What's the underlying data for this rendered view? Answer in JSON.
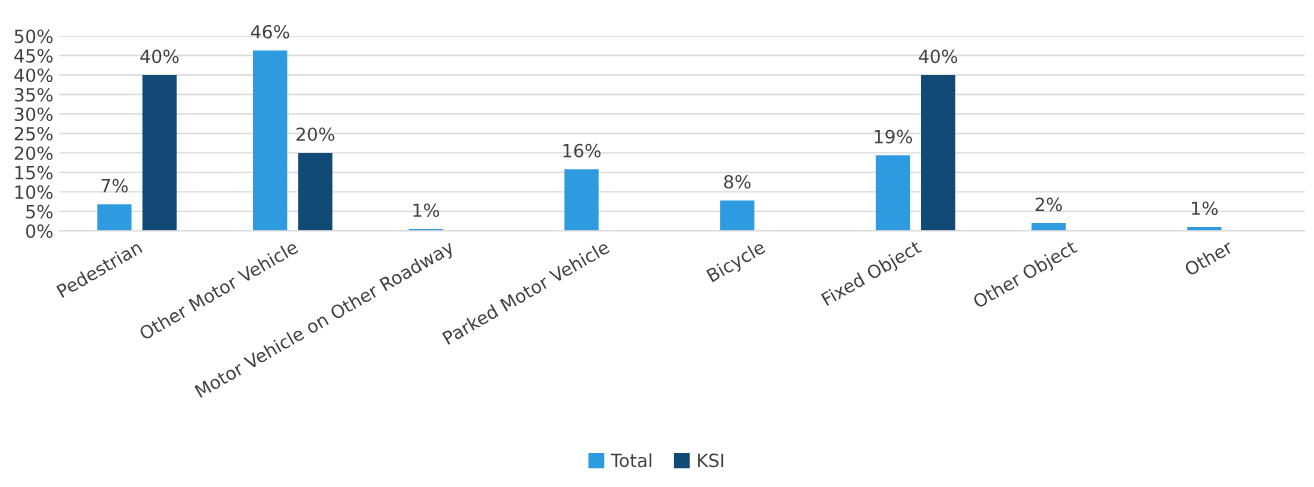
{
  "chart_data": {
    "type": "bar",
    "categories": [
      "Pedestrian",
      "Other Motor Vehicle",
      "Motor Vehicle on Other Roadway",
      "Parked Motor Vehicle",
      "Bicycle",
      "Fixed Object",
      "Other Object",
      "Other"
    ],
    "series": [
      {
        "name": "Total",
        "color": "#2e9ae0",
        "values": [
          6.8,
          46.3,
          0.5,
          15.8,
          7.8,
          19.4,
          2,
          1
        ],
        "value_labels": [
          "7%",
          "46%",
          "1%",
          "16%",
          "8%",
          "19%",
          "2%",
          "1%"
        ]
      },
      {
        "name": "KSI",
        "color": "#114b75",
        "values": [
          40,
          20,
          null,
          null,
          null,
          40,
          null,
          null
        ],
        "value_labels": [
          "40%",
          "20%",
          null,
          null,
          null,
          "40%",
          null,
          null
        ]
      }
    ],
    "ylim": [
      0,
      50
    ],
    "yticks": [
      {
        "value": 0,
        "label": "0%"
      },
      {
        "value": 5,
        "label": "5%"
      },
      {
        "value": 10,
        "label": "10%"
      },
      {
        "value": 15,
        "label": "15%"
      },
      {
        "value": 20,
        "label": "20%"
      },
      {
        "value": 25,
        "label": "25%"
      },
      {
        "value": 30,
        "label": "30%"
      },
      {
        "value": 35,
        "label": "35%"
      },
      {
        "value": 40,
        "label": "40%"
      },
      {
        "value": 45,
        "label": "45%"
      },
      {
        "value": 50,
        "label": "50%"
      }
    ],
    "grid": "y",
    "legend": "bottom"
  }
}
